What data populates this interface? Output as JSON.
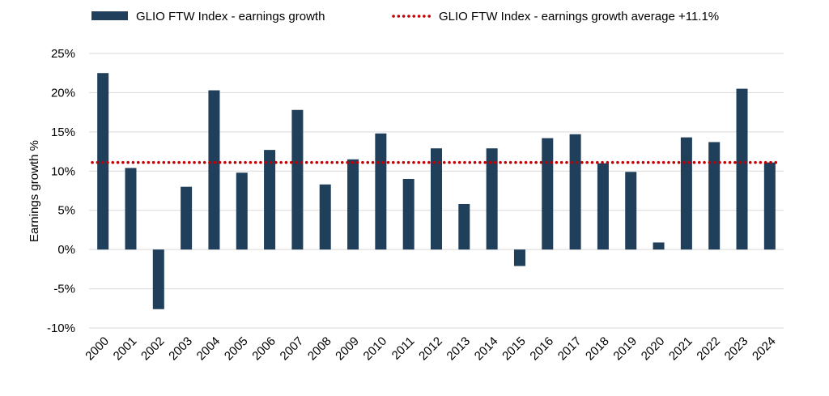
{
  "chart_data": {
    "type": "bar",
    "title": "",
    "xlabel": "",
    "ylabel": "Earnings growth %",
    "ylim": [
      -10,
      25
    ],
    "yticks": [
      -10,
      -5,
      0,
      5,
      10,
      15,
      20,
      25
    ],
    "ytick_suffix": "%",
    "grid": true,
    "legend_position": "top",
    "categories": [
      "2000",
      "2001",
      "2002",
      "2003",
      "2004",
      "2005",
      "2006",
      "2007",
      "2008",
      "2009",
      "2010",
      "2011",
      "2012",
      "2013",
      "2014",
      "2015",
      "2016",
      "2017",
      "2018",
      "2019",
      "2020",
      "2021",
      "2022",
      "2023",
      "2024"
    ],
    "series": [
      {
        "name": "GLIO FTW Index - earnings growth",
        "color": "#1f3f5b",
        "values": [
          22.5,
          10.4,
          -7.6,
          8.0,
          20.3,
          9.8,
          12.7,
          17.8,
          8.3,
          11.5,
          14.8,
          9.0,
          12.9,
          5.8,
          12.9,
          -2.1,
          14.2,
          14.7,
          11.0,
          9.9,
          0.9,
          14.3,
          13.7,
          20.5,
          11.1
        ]
      }
    ],
    "reference_line": {
      "name": "GLIO FTW Index - earnings growth average +11.1%",
      "value": 11.1,
      "color": "#c00000",
      "style": "dotted"
    }
  }
}
